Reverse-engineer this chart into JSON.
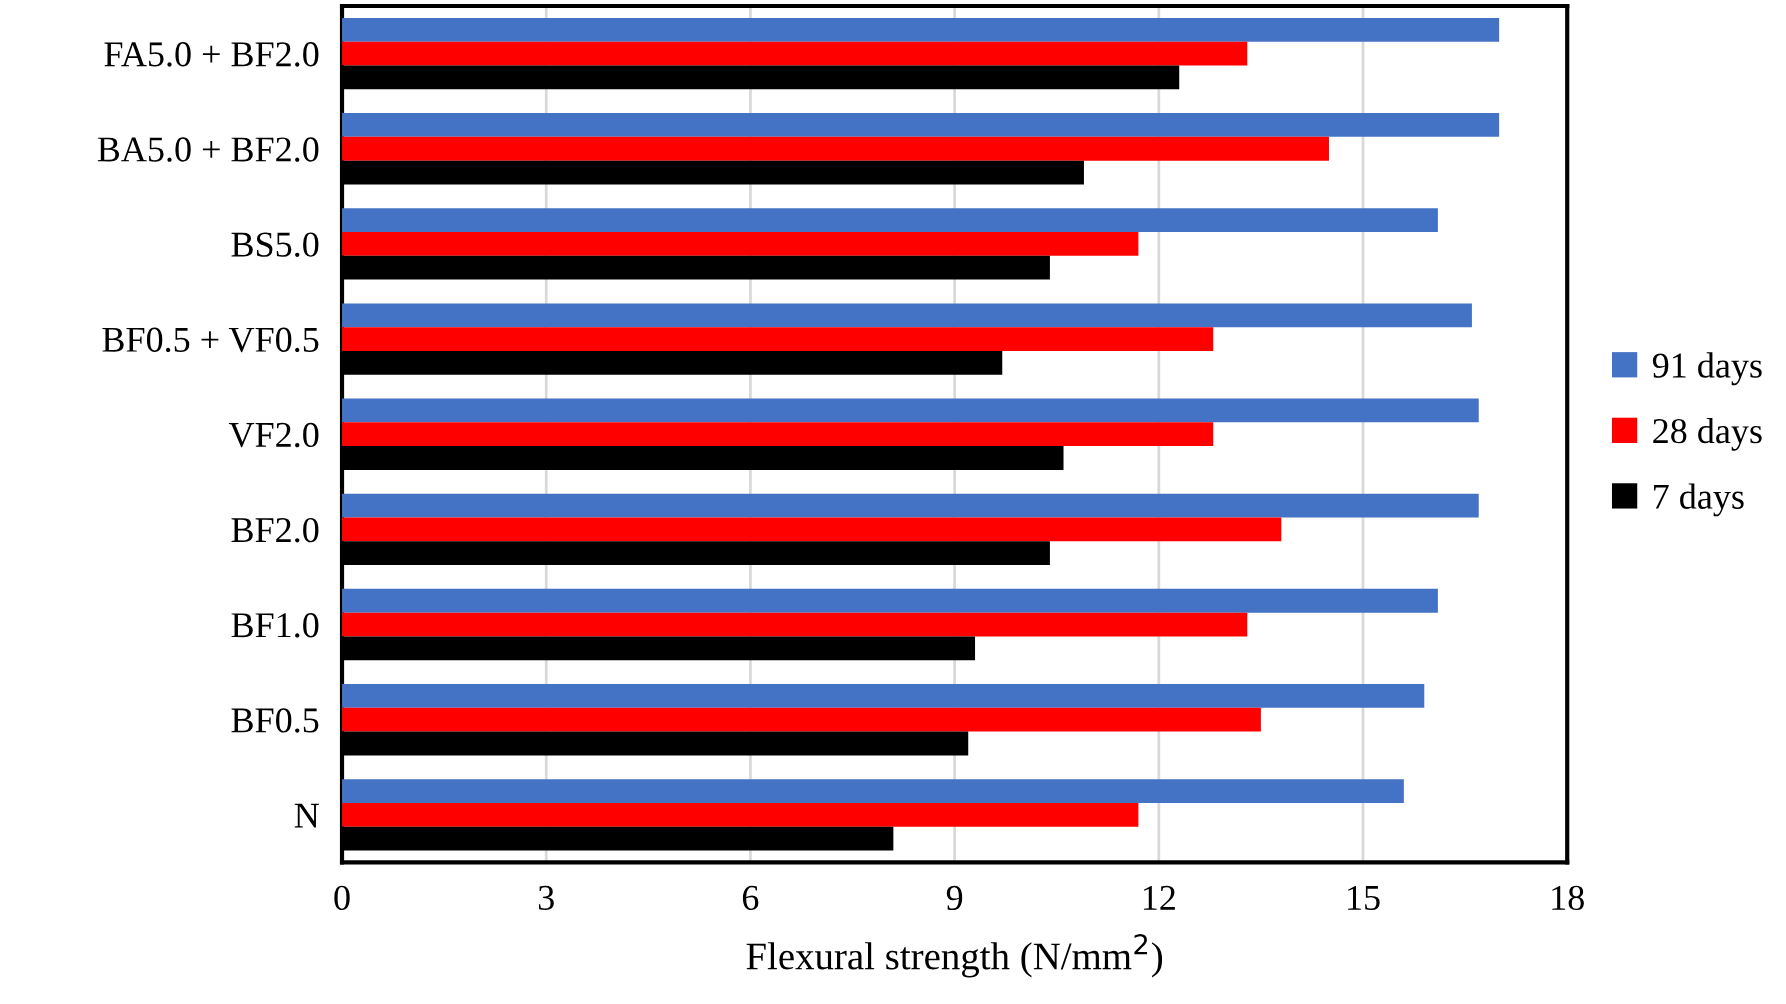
{
  "chart_data": {
    "type": "bar",
    "orientation": "horizontal",
    "xlabel": "Flexural strength (N/mm$^{2}$)",
    "categories": [
      "FA5.0 + BF2.0",
      "BA5.0 + BF2.0",
      "BS5.0",
      "BF0.5 + VF0.5",
      "VF2.0",
      "BF2.0",
      "BF1.0",
      "BF0.5",
      "N"
    ],
    "series": [
      {
        "name": "91 days",
        "color": "#4472c4",
        "values": [
          17.0,
          17.0,
          16.1,
          16.6,
          16.7,
          16.7,
          16.1,
          15.9,
          15.6
        ]
      },
      {
        "name": "28 days",
        "color": "#ff0000",
        "values": [
          13.3,
          14.5,
          11.7,
          12.8,
          12.8,
          13.8,
          13.3,
          13.5,
          11.7
        ]
      },
      {
        "name": "7 days",
        "color": "#000000",
        "values": [
          12.3,
          10.9,
          10.4,
          9.7,
          10.6,
          10.4,
          9.3,
          9.2,
          8.1
        ]
      }
    ],
    "xlim": [
      0,
      18
    ],
    "xticks": [
      0,
      3,
      6,
      9,
      12,
      15,
      18
    ],
    "grid": "x",
    "legend": "right"
  }
}
